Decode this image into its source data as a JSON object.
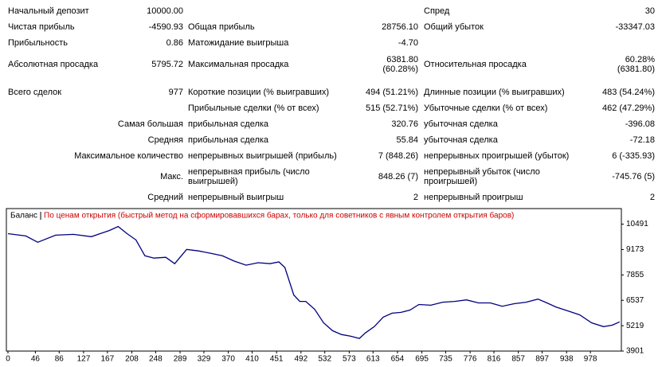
{
  "report": {
    "rows": [
      {
        "left": {
          "label": "Начальный депозит",
          "value": "10000.00"
        },
        "right": {
          "label": "Спред",
          "value": "30"
        }
      },
      {
        "left": {
          "label": "Чистая прибыль",
          "value": "-4590.93"
        },
        "middle": {
          "label": "Общая прибыль",
          "value": "28756.10"
        },
        "right": {
          "label": "Общий убыток",
          "value": "-33347.03"
        }
      },
      {
        "left": {
          "label": "Прибыльность",
          "value": "0.86"
        },
        "middle": {
          "label": "Матожидание выигрыша",
          "value": "-4.70"
        }
      },
      {
        "left": {
          "label": "Абсолютная просадка",
          "value": "5795.72"
        },
        "middle": {
          "label": "Максимальная просадка",
          "value": "6381.80\n(60.28%)"
        },
        "right": {
          "label": "Относительная просадка",
          "value": "60.28%\n(6381.80)"
        }
      },
      {
        "left": {
          "label": "Всего сделок",
          "value": "977"
        },
        "middle": {
          "label": "Короткие позиции (% выигравших)",
          "value": "494 (51.21%)"
        },
        "right": {
          "label": "Длинные позиции (% выигравших)",
          "value": "483 (54.24%)"
        }
      },
      {
        "middle": {
          "label": "Прибыльные сделки (% от всех)",
          "value": "515 (52.71%)"
        },
        "right": {
          "label": "Убыточные сделки (% от всех)",
          "value": "462 (47.29%)"
        }
      },
      {
        "left": {
          "label": "Самая большая"
        },
        "middle": {
          "label": "прибыльная сделка",
          "value": "320.76"
        },
        "right": {
          "label": "убыточная сделка",
          "value": "-396.08"
        }
      },
      {
        "left": {
          "label": "Средняя"
        },
        "middle": {
          "label": "прибыльная сделка",
          "value": "55.84"
        },
        "right": {
          "label": "убыточная сделка",
          "value": "-72.18"
        }
      },
      {
        "left": {
          "label": "Максимальное количество"
        },
        "middle": {
          "label": "непрерывных выигрышей (прибыль)",
          "value": "7 (848.26)"
        },
        "right": {
          "label": "непрерывных проигрышей (убыток)",
          "value": "6 (-335.93)"
        }
      },
      {
        "left": {
          "label": "Макс."
        },
        "middle": {
          "label": "непрерывная прибыль (число выигрышей)",
          "value": "848.26 (7)"
        },
        "right": {
          "label": "непрерывный убыток (число проигрышей)",
          "value": "-745.76 (5)"
        }
      },
      {
        "left": {
          "label": "Средний"
        },
        "middle": {
          "label": "непрерывный выигрыш",
          "value": "2"
        },
        "right": {
          "label": "непрерывный проигрыш",
          "value": "2"
        }
      }
    ]
  },
  "chart_data": {
    "type": "line",
    "subtitle": "По ценам открытия (быстрый метод на сформировавшихся барах, только для советников с явным контролем открытия баров)",
    "subtitle_color": "#cc0000",
    "series": [
      {
        "name": "Баланс",
        "color": "#00007f",
        "x": [
          0,
          30,
          50,
          80,
          110,
          140,
          170,
          185,
          200,
          215,
          230,
          245,
          265,
          280,
          300,
          320,
          340,
          360,
          380,
          400,
          420,
          440,
          455,
          465,
          480,
          490,
          500,
          515,
          530,
          545,
          560,
          575,
          590,
          600,
          615,
          630,
          645,
          660,
          675,
          690,
          710,
          730,
          750,
          770,
          790,
          810,
          830,
          850,
          870,
          890,
          905,
          920,
          940,
          960,
          980,
          1000,
          1015,
          1027
        ],
        "values": [
          10000,
          9877,
          9550,
          9920,
          9960,
          9840,
          10160,
          10370,
          10000,
          9670,
          8850,
          8730,
          8770,
          8440,
          9180,
          9100,
          8980,
          8850,
          8570,
          8360,
          8490,
          8440,
          8530,
          8240,
          6810,
          6480,
          6480,
          6070,
          5370,
          4960,
          4760,
          4680,
          4560,
          4840,
          5170,
          5660,
          5870,
          5910,
          6030,
          6320,
          6280,
          6440,
          6480,
          6560,
          6400,
          6400,
          6230,
          6360,
          6440,
          6600,
          6400,
          6190,
          5990,
          5780,
          5370,
          5170,
          5250,
          5420
        ]
      }
    ],
    "xlim": [
      0,
      1030
    ],
    "xticks": [
      0,
      46,
      86,
      127,
      167,
      208,
      248,
      289,
      329,
      370,
      410,
      451,
      492,
      532,
      573,
      613,
      654,
      695,
      735,
      776,
      816,
      857,
      897,
      938,
      978
    ],
    "ylim": [
      3901,
      11300
    ],
    "yticks": [
      3901,
      5219,
      6537,
      7855,
      9173,
      10491
    ],
    "grid": false
  }
}
